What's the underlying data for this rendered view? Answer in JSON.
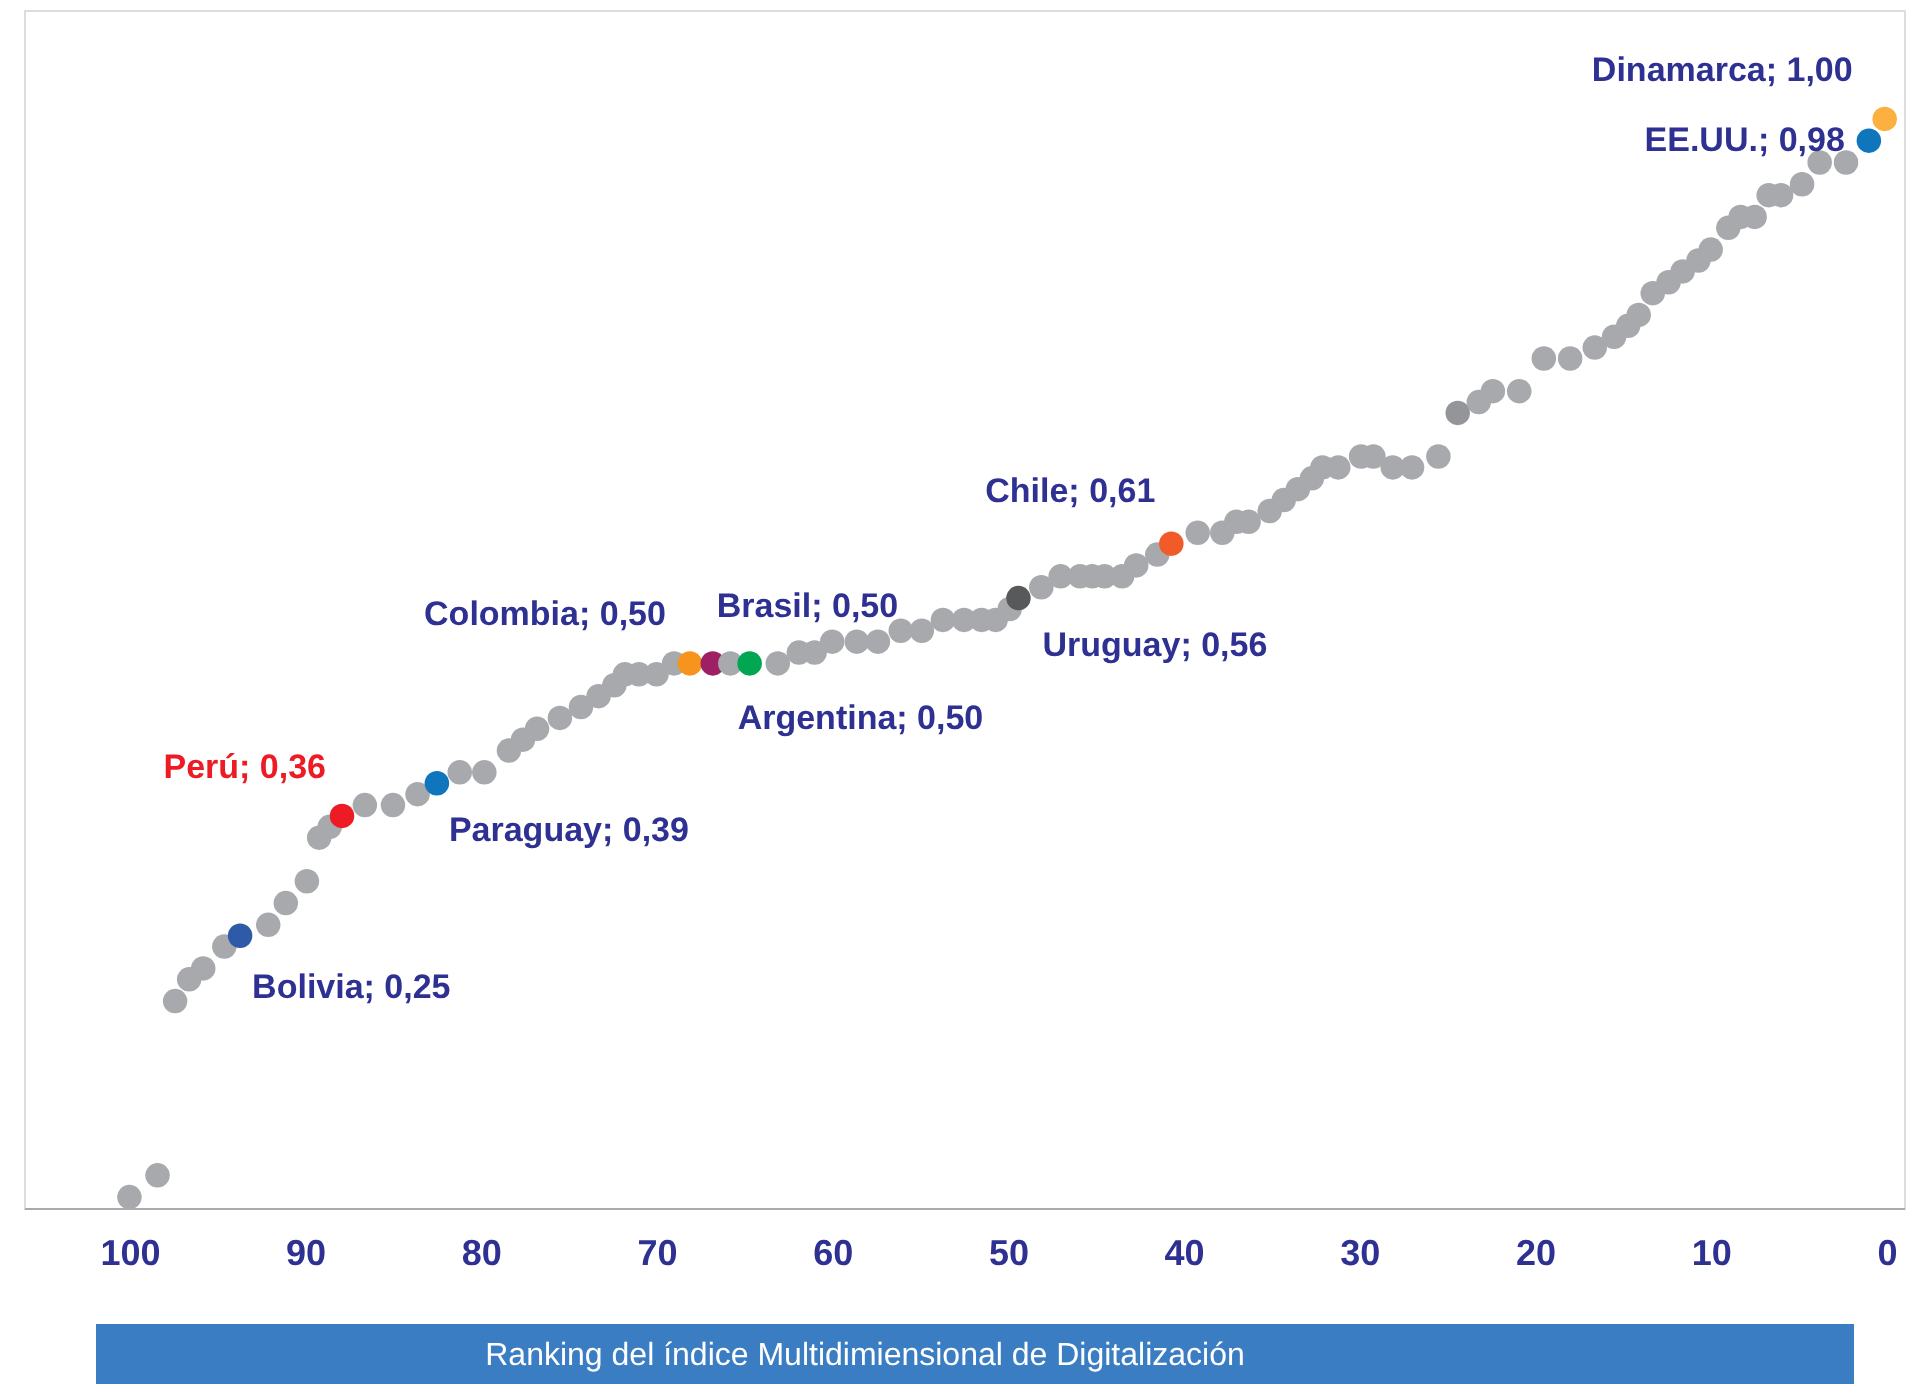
{
  "chart_data": {
    "type": "scatter",
    "xlabel": "Ranking del índice Multidimiensional de Digitalización",
    "x": [
      100,
      98.4,
      97.4,
      96.6,
      95.8,
      94.6,
      93.7,
      92.1,
      91.1,
      89.9,
      89.2,
      88.6,
      87.9,
      86.6,
      85.0,
      83.6,
      82.5,
      81.2,
      79.8,
      78.4,
      77.6,
      76.8,
      75.5,
      74.3,
      73.3,
      72.4,
      71.8,
      71.0,
      70.0,
      69.0,
      68.1,
      66.8,
      65.8,
      64.7,
      63.1,
      61.9,
      61.0,
      60.0,
      58.6,
      57.4,
      56.1,
      54.9,
      53.7,
      52.5,
      51.5,
      50.7,
      49.9,
      49.4,
      48.1,
      47.0,
      45.9,
      45.2,
      44.5,
      43.5,
      42.7,
      41.5,
      40.7,
      39.2,
      37.8,
      37.0,
      36.3,
      35.1,
      34.3,
      33.5,
      32.7,
      32.1,
      31.2,
      29.9,
      29.2,
      28.1,
      27.0,
      25.5,
      24.4,
      23.2,
      22.4,
      20.9,
      19.5,
      18.0,
      16.6,
      15.5,
      14.7,
      14.1,
      13.3,
      12.4,
      11.6,
      10.7,
      10.0,
      9.0,
      8.3,
      7.5,
      6.7,
      6.0,
      4.8,
      3.8,
      2.3,
      1.0,
      0.1
    ],
    "values": [
      0.01,
      0.03,
      0.19,
      0.21,
      0.22,
      0.24,
      0.25,
      0.26,
      0.28,
      0.3,
      0.34,
      0.35,
      0.36,
      0.37,
      0.37,
      0.38,
      0.39,
      0.4,
      0.4,
      0.42,
      0.43,
      0.44,
      0.45,
      0.46,
      0.47,
      0.48,
      0.49,
      0.49,
      0.49,
      0.5,
      0.5,
      0.5,
      0.5,
      0.5,
      0.5,
      0.51,
      0.51,
      0.52,
      0.52,
      0.52,
      0.53,
      0.53,
      0.54,
      0.54,
      0.54,
      0.54,
      0.55,
      0.56,
      0.57,
      0.58,
      0.58,
      0.58,
      0.58,
      0.58,
      0.59,
      0.6,
      0.61,
      0.62,
      0.62,
      0.63,
      0.63,
      0.64,
      0.65,
      0.66,
      0.67,
      0.68,
      0.68,
      0.69,
      0.69,
      0.68,
      0.68,
      0.69,
      0.73,
      0.74,
      0.75,
      0.75,
      0.78,
      0.78,
      0.79,
      0.8,
      0.81,
      0.82,
      0.84,
      0.85,
      0.86,
      0.87,
      0.88,
      0.9,
      0.91,
      0.91,
      0.93,
      0.93,
      0.94,
      0.96,
      0.96,
      0.98,
      1.0
    ],
    "colors": [
      "#a7a9ac",
      "#a7a9ac",
      "#a7a9ac",
      "#a7a9ac",
      "#a7a9ac",
      "#a7a9ac",
      "#2e5aa7",
      "#a7a9ac",
      "#a7a9ac",
      "#a7a9ac",
      "#a7a9ac",
      "#a7a9ac",
      "#ed1c24",
      "#a7a9ac",
      "#a7a9ac",
      "#a7a9ac",
      "#0f75bc",
      "#a7a9ac",
      "#a7a9ac",
      "#a7a9ac",
      "#a7a9ac",
      "#a7a9ac",
      "#a7a9ac",
      "#a7a9ac",
      "#a7a9ac",
      "#a7a9ac",
      "#a7a9ac",
      "#a7a9ac",
      "#a7a9ac",
      "#a7a9ac",
      "#f7941d",
      "#9e1f63",
      "#a7a9ac",
      "#00a651",
      "#a7a9ac",
      "#a7a9ac",
      "#a7a9ac",
      "#a7a9ac",
      "#a7a9ac",
      "#a7a9ac",
      "#a7a9ac",
      "#a7a9ac",
      "#a7a9ac",
      "#a7a9ac",
      "#a7a9ac",
      "#a7a9ac",
      "#a7a9ac",
      "#58595b",
      "#a7a9ac",
      "#a7a9ac",
      "#a7a9ac",
      "#a7a9ac",
      "#a7a9ac",
      "#a7a9ac",
      "#a7a9ac",
      "#a7a9ac",
      "#f15a29",
      "#a7a9ac",
      "#a7a9ac",
      "#a7a9ac",
      "#a7a9ac",
      "#a7a9ac",
      "#a7a9ac",
      "#a7a9ac",
      "#a7a9ac",
      "#a7a9ac",
      "#a7a9ac",
      "#a7a9ac",
      "#a7a9ac",
      "#a7a9ac",
      "#a7a9ac",
      "#a7a9ac",
      "#939598",
      "#a7a9ac",
      "#a7a9ac",
      "#a7a9ac",
      "#a7a9ac",
      "#a7a9ac",
      "#a7a9ac",
      "#a7a9ac",
      "#a7a9ac",
      "#a7a9ac",
      "#a7a9ac",
      "#a7a9ac",
      "#a7a9ac",
      "#a7a9ac",
      "#a7a9ac",
      "#a7a9ac",
      "#a7a9ac",
      "#a7a9ac",
      "#a7a9ac",
      "#a7a9ac",
      "#a7a9ac",
      "#a7a9ac",
      "#a7a9ac",
      "#0f75bc",
      "#fbb040"
    ],
    "value_labels": [
      null,
      null,
      null,
      null,
      null,
      null,
      "Bolivia; 0,25",
      null,
      null,
      null,
      null,
      null,
      "Perú; 0,36",
      null,
      null,
      null,
      "Paraguay; 0,39",
      null,
      null,
      null,
      null,
      null,
      null,
      null,
      null,
      null,
      null,
      null,
      null,
      null,
      "Colombia; 0,50",
      "Brasil; 0,50",
      null,
      "Argentina; 0,50",
      null,
      null,
      null,
      null,
      null,
      null,
      null,
      null,
      null,
      null,
      null,
      null,
      null,
      "Uruguay; 0,56",
      null,
      null,
      null,
      null,
      null,
      null,
      null,
      null,
      "Chile; 0,61",
      null,
      null,
      null,
      null,
      null,
      null,
      null,
      null,
      null,
      null,
      null,
      null,
      null,
      null,
      null,
      null,
      null,
      null,
      null,
      null,
      null,
      null,
      null,
      null,
      null,
      null,
      null,
      null,
      null,
      null,
      null,
      null,
      null,
      null,
      null,
      null,
      null,
      null,
      "EE.UU.; 0,98",
      "Dinamarca; 1,00"
    ],
    "xlim": [
      106,
      -1
    ],
    "xticks": [
      100,
      90,
      80,
      70,
      60,
      50,
      40,
      30,
      20,
      10,
      0
    ],
    "ylim": [
      0,
      1.1
    ],
    "tick_labels": "x",
    "marker": "circle",
    "grid": false
  }
}
